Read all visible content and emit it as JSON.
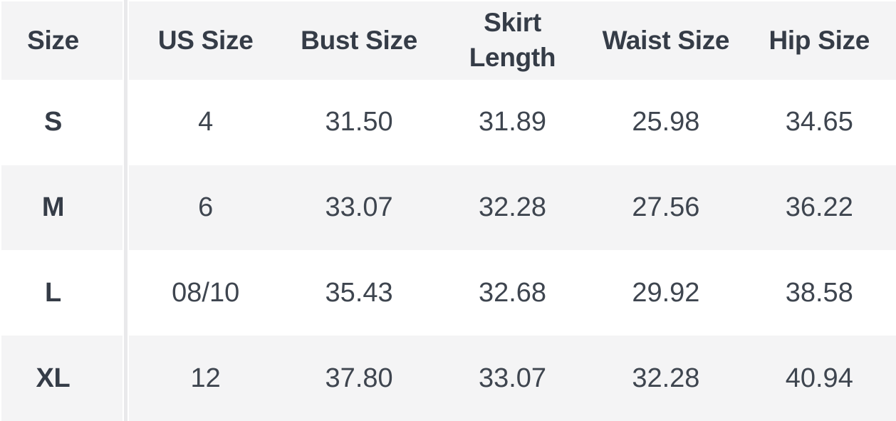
{
  "table": {
    "columns": [
      {
        "label": "Size"
      },
      {
        "label": "US Size"
      },
      {
        "label": "Bust Size"
      },
      {
        "label": "Skirt\nLength"
      },
      {
        "label": "Waist Size"
      },
      {
        "label": "Hip Size"
      }
    ],
    "rows": [
      {
        "label": "S",
        "values": [
          "4",
          "31.50",
          "31.89",
          "25.98",
          "34.65"
        ]
      },
      {
        "label": "M",
        "values": [
          "6",
          "33.07",
          "32.28",
          "27.56",
          "36.22"
        ]
      },
      {
        "label": "L",
        "values": [
          "08/10",
          "35.43",
          "32.68",
          "29.92",
          "38.58"
        ]
      },
      {
        "label": "XL",
        "values": [
          "12",
          "37.80",
          "33.07",
          "32.28",
          "40.94"
        ]
      }
    ]
  },
  "colors": {
    "background": "#ffffff",
    "row_shade": "#f4f4f5",
    "divider": "#e9e9eb",
    "header_text": "#353c47",
    "data_text": "#3e454f"
  }
}
